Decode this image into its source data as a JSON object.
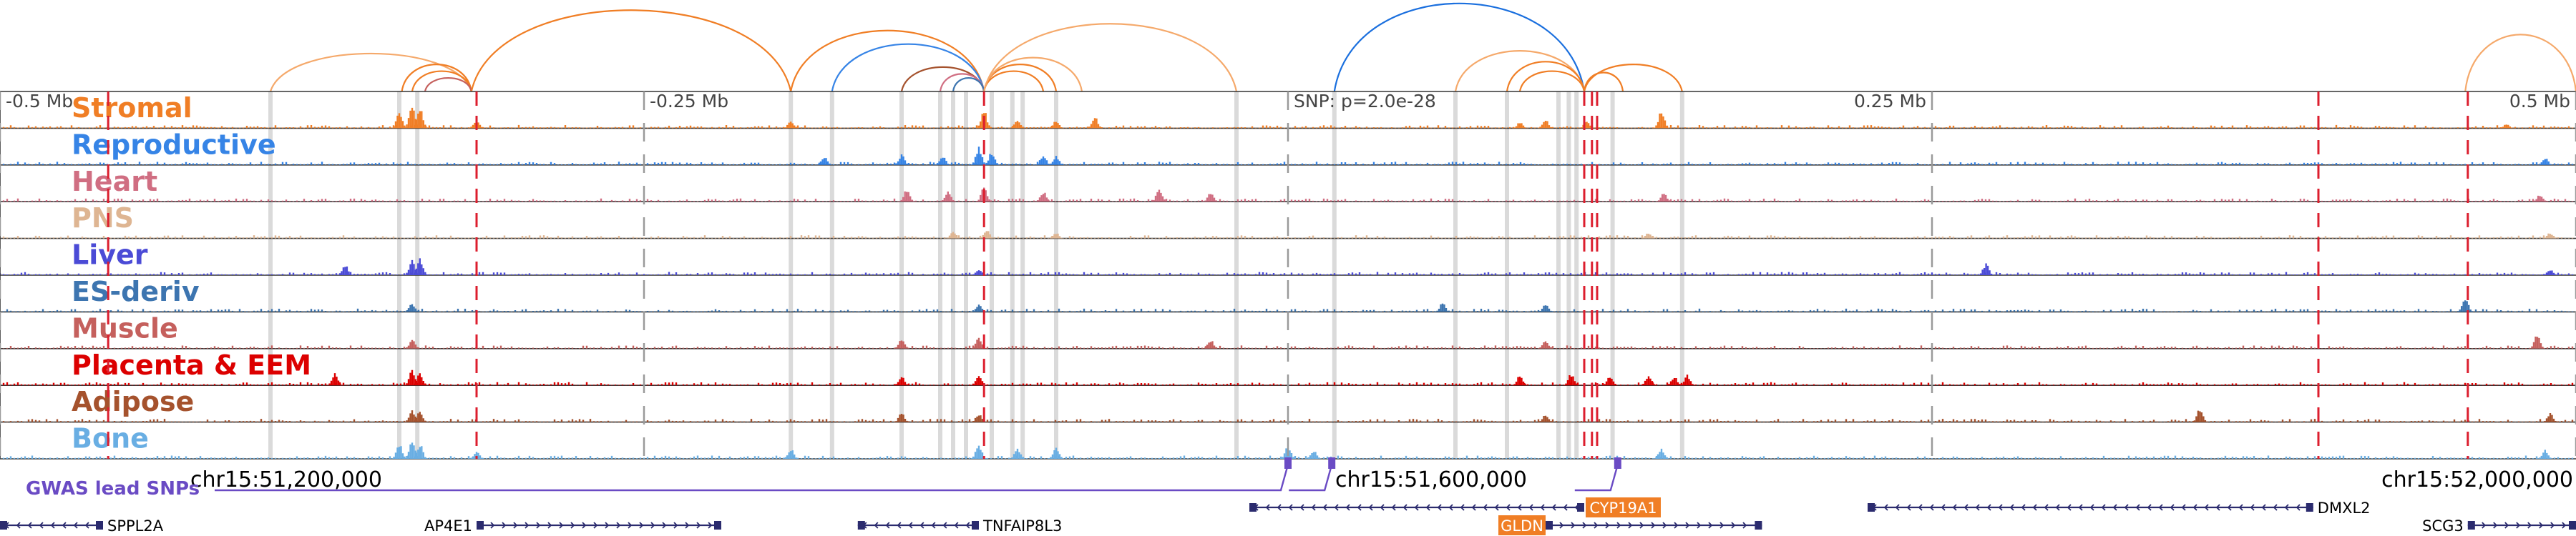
{
  "chart_data": {
    "type": "genome-browser",
    "region": {
      "chrom": "chr15",
      "start": 51100000,
      "end": 52000000
    },
    "snp_label": "SNP: p=2.0e-28",
    "relative_ticks": [
      {
        "label": "-0.5 Mb",
        "offset": -0.5
      },
      {
        "label": "-0.25 Mb",
        "offset": -0.25
      },
      {
        "label": "0.25 Mb",
        "offset": 0.25
      },
      {
        "label": "0.5 Mb",
        "offset": 0.5
      }
    ],
    "coordinate_ticks": [
      {
        "label": "chr15:51,200,000",
        "pos": 51200000
      },
      {
        "label": "chr15:51,600,000",
        "pos": 51600000
      },
      {
        "label": "chr15:52,000,000",
        "pos": 52000000
      }
    ],
    "tracks": [
      {
        "name": "Stromal",
        "color": "#f07e25",
        "peaks": [
          [
            0.155,
            0.55
          ],
          [
            0.16,
            0.8
          ],
          [
            0.163,
            0.7
          ],
          [
            0.185,
            0.3
          ],
          [
            0.307,
            0.25
          ],
          [
            0.382,
            0.6
          ],
          [
            0.395,
            0.3
          ],
          [
            0.41,
            0.25
          ],
          [
            0.425,
            0.4
          ],
          [
            0.59,
            0.2
          ],
          [
            0.6,
            0.3
          ],
          [
            0.616,
            0.25
          ],
          [
            0.645,
            0.6
          ],
          [
            0.973,
            0.15
          ]
        ]
      },
      {
        "name": "Reproductive",
        "color": "#3684e6",
        "peaks": [
          [
            0.32,
            0.3
          ],
          [
            0.35,
            0.35
          ],
          [
            0.366,
            0.3
          ],
          [
            0.38,
            0.6
          ],
          [
            0.385,
            0.45
          ],
          [
            0.405,
            0.35
          ],
          [
            0.41,
            0.3
          ],
          [
            0.988,
            0.25
          ]
        ]
      },
      {
        "name": "Heart",
        "color": "#d06e82",
        "peaks": [
          [
            0.352,
            0.45
          ],
          [
            0.368,
            0.35
          ],
          [
            0.382,
            0.5
          ],
          [
            0.405,
            0.35
          ],
          [
            0.45,
            0.45
          ],
          [
            0.47,
            0.3
          ],
          [
            0.646,
            0.3
          ],
          [
            0.986,
            0.25
          ]
        ]
      },
      {
        "name": "PNS",
        "color": "#deb592",
        "peaks": [
          [
            0.37,
            0.25
          ],
          [
            0.383,
            0.3
          ],
          [
            0.41,
            0.2
          ],
          [
            0.64,
            0.2
          ],
          [
            0.99,
            0.2
          ]
        ]
      },
      {
        "name": "Liver",
        "color": "#4b4bd6",
        "peaks": [
          [
            0.134,
            0.35
          ],
          [
            0.16,
            0.5
          ],
          [
            0.163,
            0.6
          ],
          [
            0.38,
            0.2
          ],
          [
            0.771,
            0.4
          ],
          [
            0.99,
            0.2
          ]
        ]
      },
      {
        "name": "ES-deriv",
        "color": "#3d75b0",
        "peaks": [
          [
            0.16,
            0.3
          ],
          [
            0.38,
            0.25
          ],
          [
            0.56,
            0.3
          ],
          [
            0.6,
            0.25
          ],
          [
            0.957,
            0.5
          ]
        ]
      },
      {
        "name": "Muscle",
        "color": "#c5605d",
        "peaks": [
          [
            0.16,
            0.3
          ],
          [
            0.35,
            0.35
          ],
          [
            0.38,
            0.4
          ],
          [
            0.47,
            0.3
          ],
          [
            0.6,
            0.25
          ],
          [
            0.985,
            0.5
          ]
        ]
      },
      {
        "name": "Placenta & EEM",
        "color": "#dc0000",
        "peaks": [
          [
            0.13,
            0.4
          ],
          [
            0.16,
            0.5
          ],
          [
            0.163,
            0.4
          ],
          [
            0.35,
            0.3
          ],
          [
            0.38,
            0.35
          ],
          [
            0.59,
            0.35
          ],
          [
            0.61,
            0.4
          ],
          [
            0.625,
            0.3
          ],
          [
            0.64,
            0.35
          ],
          [
            0.65,
            0.3
          ],
          [
            0.655,
            0.35
          ]
        ]
      },
      {
        "name": "Adipose",
        "color": "#a5522d",
        "peaks": [
          [
            0.16,
            0.4
          ],
          [
            0.163,
            0.35
          ],
          [
            0.35,
            0.3
          ],
          [
            0.38,
            0.3
          ],
          [
            0.6,
            0.25
          ],
          [
            0.854,
            0.45
          ],
          [
            0.99,
            0.3
          ]
        ]
      },
      {
        "name": "Bone",
        "color": "#69aee3",
        "peaks": [
          [
            0.155,
            0.5
          ],
          [
            0.16,
            0.6
          ],
          [
            0.163,
            0.5
          ],
          [
            0.185,
            0.25
          ],
          [
            0.307,
            0.35
          ],
          [
            0.38,
            0.5
          ],
          [
            0.395,
            0.35
          ],
          [
            0.41,
            0.4
          ],
          [
            0.5,
            0.45
          ],
          [
            0.51,
            0.3
          ],
          [
            0.645,
            0.35
          ],
          [
            0.988,
            0.3
          ]
        ]
      }
    ],
    "gwas": {
      "label": "GWAS lead SNPs",
      "snps": [
        0.5,
        0.517,
        0.628
      ]
    },
    "genes": [
      {
        "name": "SPPL2A",
        "start": 0.0,
        "end": 0.04,
        "strand": "-",
        "highlight": false
      },
      {
        "name": "AP4E1",
        "start": 0.185,
        "end": 0.28,
        "strand": "+",
        "highlight": false
      },
      {
        "name": "TNFAIP8L3",
        "start": 0.333,
        "end": 0.38,
        "strand": "-",
        "highlight": false
      },
      {
        "name": "CYP19A1",
        "start": 0.485,
        "end": 0.615,
        "strand": "-",
        "highlight": true
      },
      {
        "name": "GLDN",
        "start": 0.6,
        "end": 0.684,
        "strand": "+",
        "highlight": true
      },
      {
        "name": "DMXL2",
        "start": 0.725,
        "end": 0.898,
        "strand": "-",
        "highlight": false
      },
      {
        "name": "SCG3",
        "start": 0.958,
        "end": 1.0,
        "strand": "+",
        "highlight": false
      }
    ],
    "highlight_color": "#f07e25",
    "loops": [
      {
        "from": 0.105,
        "to": 0.183,
        "color": "#f5a96b",
        "h": 0.28
      },
      {
        "from": 0.156,
        "to": 0.183,
        "color": "#f07e25",
        "h": 0.2
      },
      {
        "from": 0.16,
        "to": 0.183,
        "color": "#f07e25",
        "h": 0.15
      },
      {
        "from": 0.165,
        "to": 0.183,
        "color": "#c5605d",
        "h": 0.1
      },
      {
        "from": 0.183,
        "to": 0.307,
        "color": "#f07e25",
        "h": 0.6
      },
      {
        "from": 0.307,
        "to": 0.382,
        "color": "#f07e25",
        "h": 0.45
      },
      {
        "from": 0.323,
        "to": 0.382,
        "color": "#3684e6",
        "h": 0.35
      },
      {
        "from": 0.35,
        "to": 0.382,
        "color": "#a5522d",
        "h": 0.18
      },
      {
        "from": 0.365,
        "to": 0.382,
        "color": "#d06e82",
        "h": 0.13
      },
      {
        "from": 0.37,
        "to": 0.382,
        "color": "#3d75b0",
        "h": 0.1
      },
      {
        "from": 0.382,
        "to": 0.405,
        "color": "#f07e25",
        "h": 0.15
      },
      {
        "from": 0.382,
        "to": 0.41,
        "color": "#f07e25",
        "h": 0.2
      },
      {
        "from": 0.382,
        "to": 0.42,
        "color": "#f5a96b",
        "h": 0.25
      },
      {
        "from": 0.382,
        "to": 0.48,
        "color": "#f5a96b",
        "h": 0.5
      },
      {
        "from": 0.518,
        "to": 0.615,
        "color": "#1a6fde",
        "h": 0.65
      },
      {
        "from": 0.565,
        "to": 0.615,
        "color": "#f5a96b",
        "h": 0.3
      },
      {
        "from": 0.585,
        "to": 0.615,
        "color": "#f07e25",
        "h": 0.22
      },
      {
        "from": 0.59,
        "to": 0.615,
        "color": "#f07e25",
        "h": 0.15
      },
      {
        "from": 0.615,
        "to": 0.63,
        "color": "#f07e25",
        "h": 0.14
      },
      {
        "from": 0.615,
        "to": 0.653,
        "color": "#f07e25",
        "h": 0.2
      },
      {
        "from": 0.957,
        "to": 1.0,
        "color": "#f5a96b",
        "h": 0.42
      }
    ],
    "gray_highlights": [
      0.105,
      0.155,
      0.162,
      0.307,
      0.323,
      0.35,
      0.365,
      0.37,
      0.375,
      0.385,
      0.393,
      0.397,
      0.41,
      0.48,
      0.518,
      0.565,
      0.585,
      0.605,
      0.609,
      0.612,
      0.626,
      0.653
    ],
    "red_dashed": [
      0.042,
      0.185,
      0.382,
      0.615,
      0.618,
      0.62,
      0.9,
      0.958
    ],
    "gray_dashed": [
      0.0,
      0.25,
      0.5,
      0.75,
      1.0
    ]
  }
}
